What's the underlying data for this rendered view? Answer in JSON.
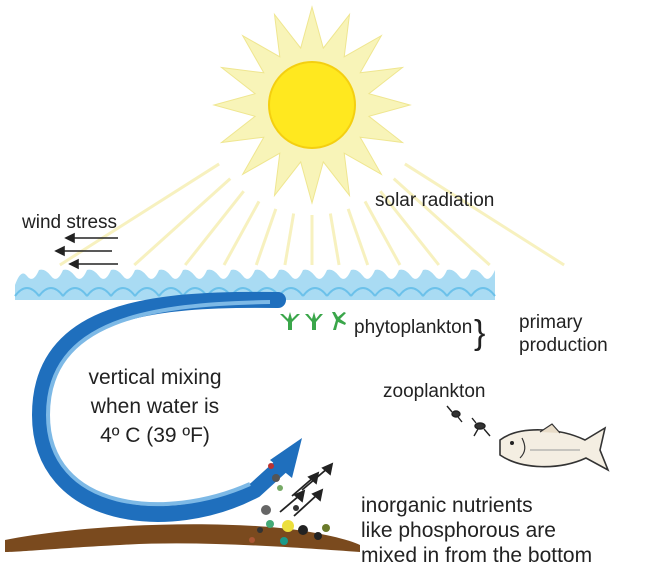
{
  "labels": {
    "solar_radiation": "solar radiation",
    "wind_stress": "wind stress",
    "phytoplankton": "phytoplankton",
    "primary_production": [
      "primary",
      "production"
    ],
    "vertical_mixing": [
      "vertical mixing",
      "when water is",
      "4º C (39 ºF)"
    ],
    "zooplankton": "zooplankton",
    "nutrients": [
      "inorganic nutrients",
      "like phosphorous are",
      "mixed in from the bottom"
    ]
  }
}
